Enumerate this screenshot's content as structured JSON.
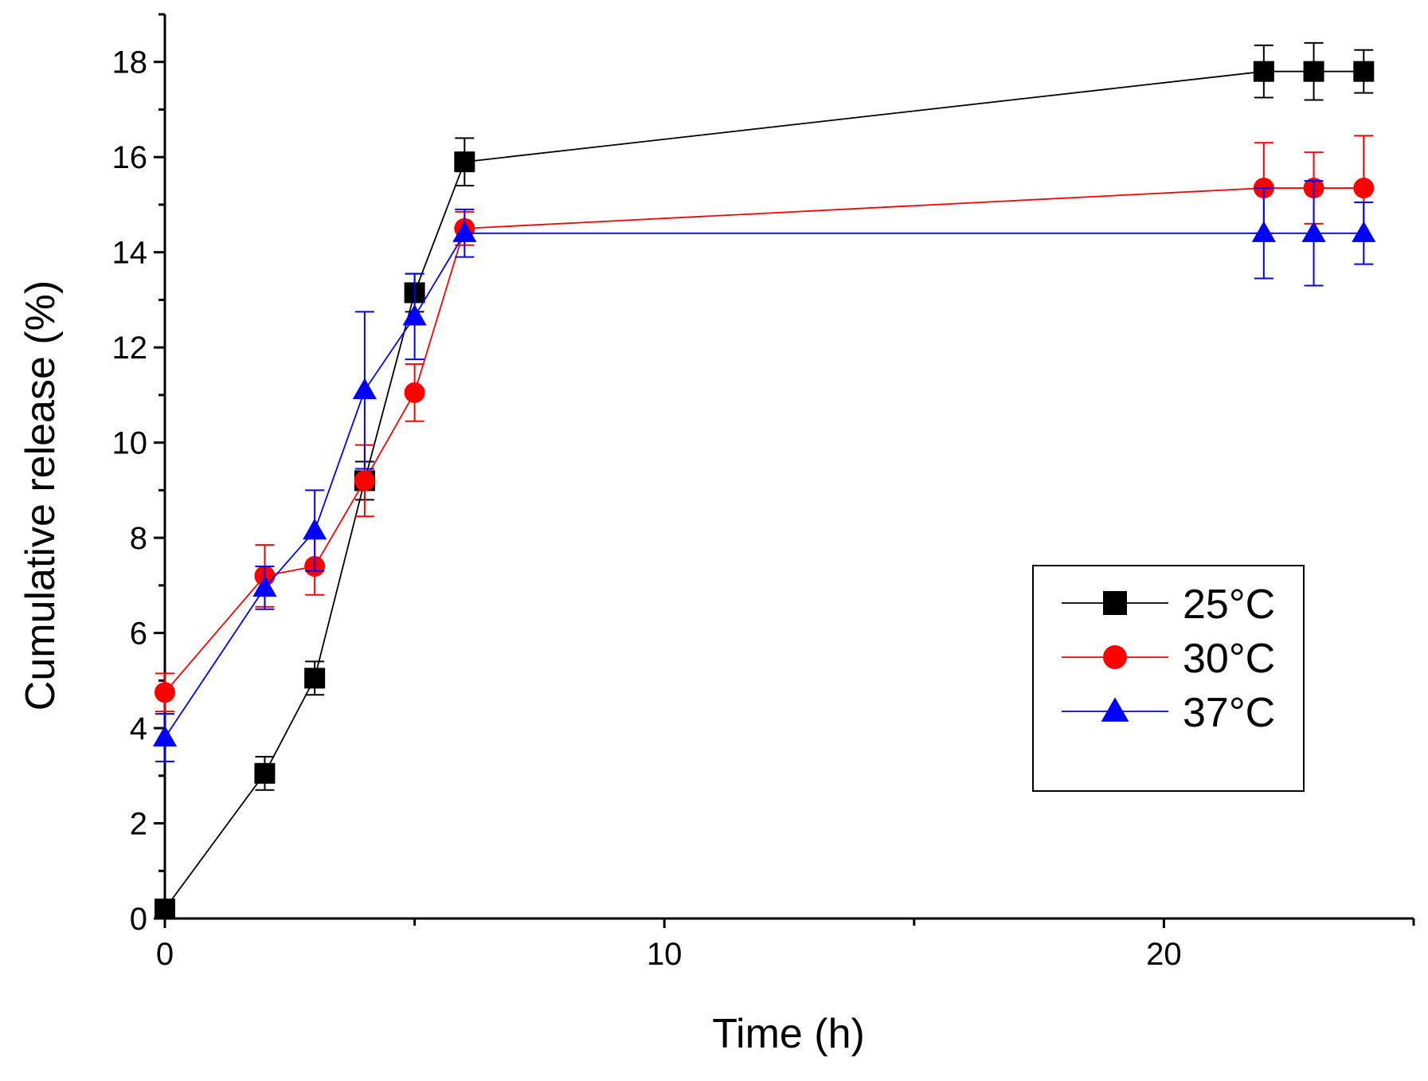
{
  "chart_data": {
    "type": "line",
    "title": "",
    "xlabel": "Time (h)",
    "ylabel": "Cumulative release (%)",
    "xlim": [
      0,
      25
    ],
    "ylim": [
      0,
      19
    ],
    "xticks": [
      0,
      10,
      20
    ],
    "xticks_minor": [
      5,
      15,
      25
    ],
    "yticks": [
      0,
      2,
      4,
      6,
      8,
      10,
      12,
      14,
      16,
      18
    ],
    "legend_position": "right",
    "series": [
      {
        "name": "25°C",
        "color": "#000000",
        "marker": "square",
        "x": [
          0,
          2,
          3,
          4,
          5,
          6,
          22,
          23,
          24
        ],
        "values": [
          0.2,
          3.05,
          5.05,
          9.2,
          13.15,
          15.9,
          17.8,
          17.8,
          17.8
        ],
        "errors": [
          0.1,
          0.35,
          0.35,
          0.4,
          0.4,
          0.5,
          0.55,
          0.6,
          0.45
        ]
      },
      {
        "name": "30°C",
        "color": "#ff0000",
        "marker": "circle",
        "x": [
          0,
          2,
          3,
          4,
          5,
          6,
          22,
          23,
          24
        ],
        "values": [
          4.75,
          7.2,
          7.4,
          9.2,
          11.05,
          14.5,
          15.35,
          15.35,
          15.35
        ],
        "errors": [
          0.4,
          0.65,
          0.6,
          0.75,
          0.6,
          0.35,
          0.95,
          0.75,
          1.1
        ]
      },
      {
        "name": "37°C",
        "color": "#0000ff",
        "marker": "triangle",
        "x": [
          0,
          2,
          3,
          4,
          5,
          6,
          22,
          23,
          24
        ],
        "values": [
          3.8,
          6.95,
          8.15,
          11.1,
          12.65,
          14.4,
          14.4,
          14.4,
          14.4
        ],
        "errors": [
          0.5,
          0.45,
          0.85,
          1.65,
          0.9,
          0.5,
          0.95,
          1.1,
          0.65
        ]
      }
    ]
  }
}
